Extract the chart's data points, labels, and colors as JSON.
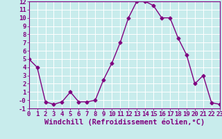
{
  "x": [
    0,
    1,
    2,
    3,
    4,
    5,
    6,
    7,
    8,
    9,
    10,
    11,
    12,
    13,
    14,
    15,
    16,
    17,
    18,
    19,
    20,
    21,
    22,
    23
  ],
  "y": [
    5.0,
    4.0,
    -0.2,
    -0.5,
    -0.2,
    1.0,
    -0.2,
    -0.2,
    0.0,
    2.5,
    4.5,
    7.0,
    10.0,
    12.0,
    12.0,
    11.5,
    10.0,
    10.0,
    7.5,
    5.5,
    2.0,
    3.0,
    -0.3,
    -0.5
  ],
  "line_color": "#800080",
  "marker": "D",
  "markersize": 2.5,
  "linewidth": 1.0,
  "xlabel": "Windchill (Refroidissement éolien,°C)",
  "xlabel_color": "#800080",
  "bg_color": "#c8ecec",
  "grid_color": "#ffffff",
  "tick_color": "#800080",
  "spine_color": "#800080",
  "ylim": [
    -1,
    12
  ],
  "xlim": [
    0,
    23
  ],
  "yticks": [
    -1,
    0,
    1,
    2,
    3,
    4,
    5,
    6,
    7,
    8,
    9,
    10,
    11,
    12
  ],
  "xticks": [
    0,
    1,
    2,
    3,
    4,
    5,
    6,
    7,
    8,
    9,
    10,
    11,
    12,
    13,
    14,
    15,
    16,
    17,
    18,
    19,
    20,
    21,
    22,
    23
  ],
  "tick_fontsize": 6.5,
  "xlabel_fontsize": 7.5
}
